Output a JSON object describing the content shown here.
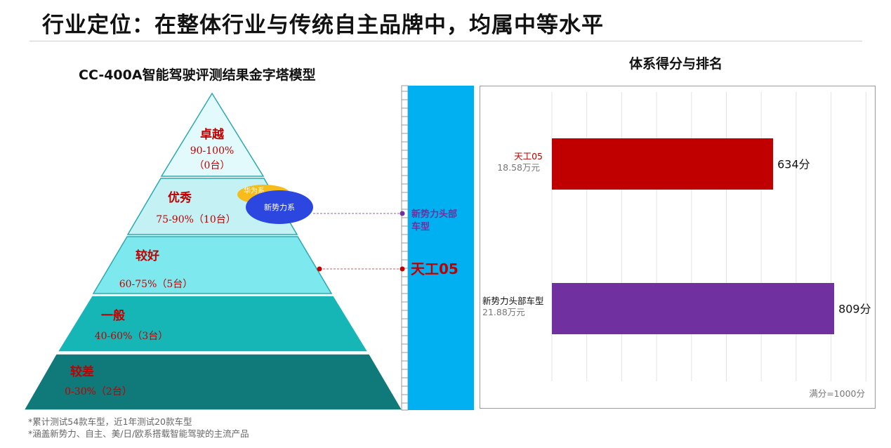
{
  "page_title": "行业定位：在整体行业与传统自主品牌中，均属中等水平",
  "pyramid": {
    "title": "CC-400A智能驾驶评测结果金字塔模型",
    "tiers": [
      {
        "name": "卓越",
        "range": "90-100%",
        "count": "（0台）"
      },
      {
        "name": "优秀",
        "range": "75-90%（10台）"
      },
      {
        "name": "较好",
        "range": "60-75%（5台）"
      },
      {
        "name": "一般",
        "range": "40-60%（3台）"
      },
      {
        "name": "较差",
        "range": "0-30%（2台）"
      }
    ],
    "badges": {
      "huawei": "华为系",
      "new_forces": "新势力系"
    },
    "markers": {
      "new_forces": "新势力头部\n车型",
      "tiangong": "天工05"
    }
  },
  "chart_data": {
    "type": "bar",
    "orientation": "horizontal",
    "title": "体系得分与排名",
    "categories": [
      "天工05",
      "新势力头部车型"
    ],
    "category_prices": [
      "18.58万元",
      "21.88万元"
    ],
    "values": [
      634,
      809
    ],
    "value_labels": [
      "634分",
      "809分"
    ],
    "bar_colors": [
      "#c00000",
      "#7030a0"
    ],
    "xlim": [
      0,
      1000
    ],
    "grid": true,
    "note": "满分=1000分"
  },
  "footnotes": [
    "*累计测试54款车型，近1年测试20款车型",
    "*涵盖新势力、自主、美/日/欧系搭载智能驾驶的主流产品"
  ]
}
